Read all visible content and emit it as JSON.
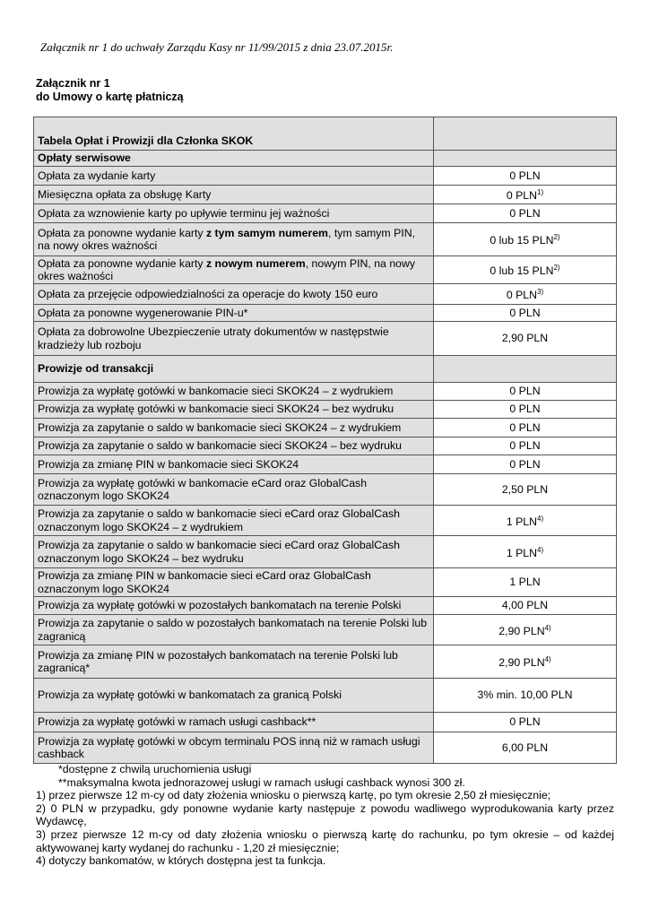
{
  "header_line": "Załącznik nr 1 do uchwały Zarządu Kasy nr 11/99/2015 z dnia 23.07.2015r.",
  "title": [
    "Załącznik nr 1",
    "do Umowy o kartę płatniczą"
  ],
  "table": {
    "rows": [
      {
        "kind": "top",
        "label": [
          {
            "t": "Tabela Opłat i Prowizji dla Członka SKOK"
          }
        ],
        "value": ""
      },
      {
        "kind": "sec",
        "label": [
          {
            "t": "Opłaty serwisowe"
          }
        ],
        "value": ""
      },
      {
        "label": [
          {
            "t": "Opłata za wydanie karty"
          }
        ],
        "value": "0 PLN"
      },
      {
        "label": [
          {
            "t": "Miesięczna opłata za obsługę Karty"
          }
        ],
        "value": "0 PLN",
        "sup": "1)"
      },
      {
        "label": [
          {
            "t": "Opłata za wznowienie karty po upływie terminu jej ważności"
          }
        ],
        "value": "0 PLN"
      },
      {
        "label": [
          {
            "t": "Opłata za ponowne wydanie karty "
          },
          {
            "t": "z tym samym numerem",
            "b": true
          },
          {
            "t": ", tym samym PIN, na nowy okres ważności"
          }
        ],
        "value": "0 lub 15 PLN",
        "sup": "2)"
      },
      {
        "label": [
          {
            "t": "Opłata za ponowne wydanie karty "
          },
          {
            "t": "z nowym numerem",
            "b": true
          },
          {
            "t": ", nowym PIN, na nowy okres ważności"
          }
        ],
        "value": "0 lub 15 PLN",
        "sup": "2)"
      },
      {
        "label": [
          {
            "t": "Opłata za przejęcie odpowiedzialności za operacje do kwoty 150 euro"
          }
        ],
        "value": "0 PLN",
        "sup": "3)"
      },
      {
        "label": [
          {
            "t": "Opłata za ponowne wygenerowanie PIN-u*"
          }
        ],
        "value": "0 PLN"
      },
      {
        "label": [
          {
            "t": "Opłata za dobrowolne Ubezpieczenie utraty dokumentów w następstwie kradzieży lub rozboju"
          }
        ],
        "value": "2,90 PLN"
      },
      {
        "kind": "sec",
        "label": [
          {
            "t": "Prowizje od transakcji"
          }
        ],
        "value": ""
      },
      {
        "label": [
          {
            "t": "Prowizja za wypłatę gotówki w bankomacie sieci SKOK24 – z wydrukiem"
          }
        ],
        "value": "0 PLN"
      },
      {
        "label": [
          {
            "t": "Prowizja za wypłatę gotówki w bankomacie sieci SKOK24 – bez wydruku"
          }
        ],
        "value": "0 PLN"
      },
      {
        "label": [
          {
            "t": "Prowizja za zapytanie o saldo w bankomacie sieci SKOK24 – z wydrukiem"
          }
        ],
        "value": "0 PLN"
      },
      {
        "label": [
          {
            "t": "Prowizja za zapytanie o saldo w bankomacie sieci SKOK24 – bez wydruku"
          }
        ],
        "value": "0 PLN"
      },
      {
        "label": [
          {
            "t": "Prowizja za zmianę PIN w bankomacie sieci SKOK24"
          }
        ],
        "value": "0 PLN"
      },
      {
        "label": [
          {
            "t": "Prowizja za wypłatę gotówki w bankomacie eCard oraz GlobalCash oznaczonym logo SKOK24"
          }
        ],
        "value": "2,50 PLN"
      },
      {
        "label": [
          {
            "t": "Prowizja za zapytanie o saldo w bankomacie sieci eCard oraz GlobalCash oznaczonym logo SKOK24 – z wydrukiem"
          }
        ],
        "value": "1 PLN",
        "sup": "4)"
      },
      {
        "label": [
          {
            "t": "Prowizja za zapytanie o saldo w bankomacie sieci eCard oraz GlobalCash oznaczonym logo SKOK24 –  bez wydruku"
          }
        ],
        "value": "1 PLN",
        "sup": "4)"
      },
      {
        "label": [
          {
            "t": "Prowizja za zmianę PIN w bankomacie sieci eCard oraz GlobalCash oznaczonym logo SKOK24"
          }
        ],
        "value": "1 PLN"
      },
      {
        "label": [
          {
            "t": "Prowizja za wypłatę gotówki w pozostałych bankomatach  na terenie Polski"
          }
        ],
        "value": "4,00 PLN"
      },
      {
        "label": [
          {
            "t": "Prowizja za zapytanie o saldo w pozostałych bankomatach na terenie Polski lub zagranicą"
          }
        ],
        "value": "2,90 PLN",
        "sup": "4)"
      },
      {
        "label": [
          {
            "t": "Prowizja za zmianę PIN w pozostałych bankomatach na terenie Polski lub zagranicą*"
          }
        ],
        "value": "2,90 PLN",
        "sup": "4)"
      },
      {
        "label": [
          {
            "t": "Prowizja za wypłatę gotówki w bankomatach za granicą Polski"
          }
        ],
        "value": "3% min. 10,00 PLN"
      },
      {
        "label": [
          {
            "t": "Prowizja za wypłatę gotówki w ramach usługi cashback**"
          }
        ],
        "value": "0 PLN"
      },
      {
        "label": [
          {
            "t": "Prowizja za wypłatę gotówki w obcym terminalu POS inną niż w ramach usługi cashback"
          }
        ],
        "value": "6,00 PLN"
      }
    ]
  },
  "notes": [
    "*dostępne z chwilą uruchomienia usługi",
    "**maksymalna kwota jednorazowej usługi w ramach usługi cashback wynosi 300 zł.",
    "1)  przez pierwsze 12 m-cy od daty złożenia wniosku o pierwszą kartę, po tym okresie  2,50 zł miesięcznie;",
    "2) 0 PLN w przypadku, gdy ponowne wydanie  karty następuje z powodu wadliwego wyprodukowania karty przez Wydawcę,",
    "3) przez pierwsze 12 m-cy od daty złożenia wniosku o pierwszą kartę do rachunku, po tym okresie – od każdej aktywowanej karty wydanej do rachunku - 1,20 zł miesięcznie;",
    "4) dotyczy bankomatów, w których dostępna jest ta funkcja."
  ]
}
